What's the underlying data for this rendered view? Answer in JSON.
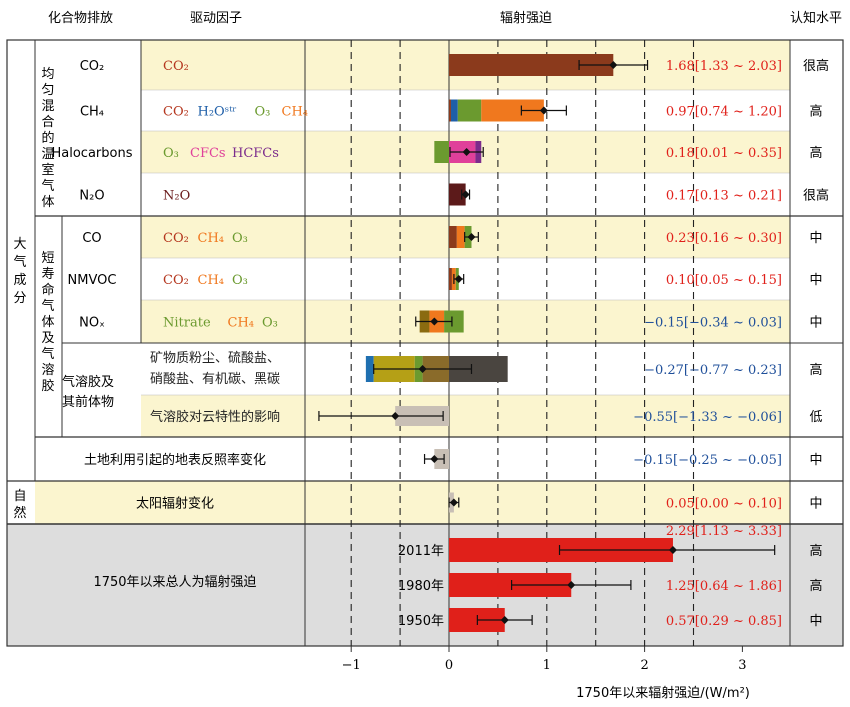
{
  "headers": {
    "emission": "化合物排放",
    "driver": "驱动因子",
    "forcing": "辐射强迫",
    "confidence": "认知水平"
  },
  "groups": {
    "atmos": "大气成分",
    "wmghg": "均匀混合的温室气体",
    "slcf": "短寿命气体及气溶胶",
    "natural": "自然"
  },
  "chart_data": {
    "type": "bar",
    "xlabel": "1750年以来辐射强迫/(W/m²)",
    "xlim": [
      -1.0,
      3.0
    ],
    "xticks": [
      "−1",
      "0",
      "1",
      "2",
      "3"
    ],
    "xtick_values": [
      -1,
      0,
      1,
      2,
      3
    ],
    "grid": "dashed vertical at -1, -0.5, 0.5, 1, 1.5, 2, 2.5",
    "rows": [
      {
        "emission": "CO₂",
        "drivers": [
          {
            "text": "CO₂",
            "color": "#b5371f"
          }
        ],
        "segments": [
          {
            "from": 0,
            "to": 1.68,
            "color": "#8b3a1c"
          }
        ],
        "value": 1.68,
        "ci": [
          1.33,
          2.03
        ],
        "label": "1.68[1.33 ~ 2.03]",
        "label_color": "#e0201a",
        "confidence": "很高"
      },
      {
        "emission": "CH₄",
        "drivers": [
          {
            "text": "CO₂",
            "color": "#b5371f"
          },
          {
            "text": "H₂Oˢᵗʳ",
            "color": "#1f5fa8"
          },
          {
            "text": "O₃",
            "color": "#6b9a2f"
          },
          {
            "text": "CH₄",
            "color": "#f0781e"
          }
        ],
        "segments": [
          {
            "from": 0,
            "to": 0.02,
            "color": "#8b3a1c"
          },
          {
            "from": 0.02,
            "to": 0.09,
            "color": "#1f5fa8"
          },
          {
            "from": 0.09,
            "to": 0.33,
            "color": "#6b9a2f"
          },
          {
            "from": 0.33,
            "to": 0.97,
            "color": "#f0781e"
          }
        ],
        "value": 0.97,
        "ci": [
          0.74,
          1.2
        ],
        "label": "0.97[0.74 ~ 1.20]",
        "label_color": "#e0201a",
        "confidence": "高"
      },
      {
        "emission": "Halocarbons",
        "drivers": [
          {
            "text": "O₃",
            "color": "#6b9a2f"
          },
          {
            "text": "CFCs",
            "color": "#e0409a"
          },
          {
            "text": "HCFCs",
            "color": "#7b2b8c"
          }
        ],
        "segments": [
          {
            "from": -0.15,
            "to": 0,
            "color": "#6b9a2f"
          },
          {
            "from": 0,
            "to": 0.27,
            "color": "#e0409a"
          },
          {
            "from": 0.27,
            "to": 0.33,
            "color": "#7b2b8c"
          }
        ],
        "value": 0.18,
        "ci": [
          0.01,
          0.35
        ],
        "label": "0.18[0.01 ~ 0.35]",
        "label_color": "#e0201a",
        "confidence": "高"
      },
      {
        "emission": "N₂O",
        "drivers": [
          {
            "text": "N₂O",
            "color": "#6b1b1b"
          }
        ],
        "segments": [
          {
            "from": 0,
            "to": 0.17,
            "color": "#5c1a1a"
          }
        ],
        "value": 0.17,
        "ci": [
          0.13,
          0.21
        ],
        "label": "0.17[0.13 ~ 0.21]",
        "label_color": "#e0201a",
        "confidence": "很高"
      },
      {
        "emission": "CO",
        "drivers": [
          {
            "text": "CO₂",
            "color": "#b5371f"
          },
          {
            "text": "CH₄",
            "color": "#f0781e"
          },
          {
            "text": "O₃",
            "color": "#6b9a2f"
          }
        ],
        "segments": [
          {
            "from": 0,
            "to": 0.08,
            "color": "#8b3a1c"
          },
          {
            "from": 0.08,
            "to": 0.16,
            "color": "#f0781e"
          },
          {
            "from": 0.16,
            "to": 0.23,
            "color": "#6b9a2f"
          }
        ],
        "value": 0.23,
        "ci": [
          0.16,
          0.3
        ],
        "label": "0.23[0.16 ~ 0.30]",
        "label_color": "#e0201a",
        "confidence": "中"
      },
      {
        "emission": "NMVOC",
        "drivers": [
          {
            "text": "CO₂",
            "color": "#b5371f"
          },
          {
            "text": "CH₄",
            "color": "#f0781e"
          },
          {
            "text": "O₃",
            "color": "#6b9a2f"
          }
        ],
        "segments": [
          {
            "from": 0,
            "to": 0.03,
            "color": "#8b3a1c"
          },
          {
            "from": 0.03,
            "to": 0.07,
            "color": "#f0781e"
          },
          {
            "from": 0.07,
            "to": 0.1,
            "color": "#6b9a2f"
          }
        ],
        "value": 0.1,
        "ci": [
          0.05,
          0.15
        ],
        "label": "0.10[0.05 ~ 0.15]",
        "label_color": "#e0201a",
        "confidence": "中"
      },
      {
        "emission": "NOₓ",
        "drivers": [
          {
            "text": "Nitrate",
            "color": "#6b9a2f"
          },
          {
            "text": "CH₄",
            "color": "#f0781e"
          },
          {
            "text": "O₃",
            "color": "#6b9a2f"
          }
        ],
        "segments": [
          {
            "from": -0.3,
            "to": -0.2,
            "color": "#8a6b10"
          },
          {
            "from": -0.2,
            "to": -0.05,
            "color": "#f0781e"
          },
          {
            "from": -0.05,
            "to": 0.15,
            "color": "#6b9a2f"
          }
        ],
        "value": -0.15,
        "ci": [
          -0.34,
          0.03
        ],
        "label": "−0.15[−0.34 ~ 0.03]",
        "label_color": "#1f4f9a",
        "confidence": "中"
      },
      {
        "emission": "",
        "drivers": [
          {
            "text": "矿物质粉尘、硫酸盐、",
            "color": "#222222"
          },
          {
            "text": "硝酸盐、有机碳、黑碳",
            "color": "#222222"
          }
        ],
        "segments": [
          {
            "from": -0.85,
            "to": -0.77,
            "color": "#1f6fb0"
          },
          {
            "from": -0.77,
            "to": -0.35,
            "color": "#b5a016"
          },
          {
            "from": -0.35,
            "to": -0.27,
            "color": "#6b9a2f"
          },
          {
            "from": -0.27,
            "to": 0,
            "color": "#8a6b2a"
          },
          {
            "from": 0,
            "to": 0.6,
            "color": "#4a4540"
          }
        ],
        "value": -0.27,
        "ci": [
          -0.77,
          0.23
        ],
        "label": "−0.27[−0.77 ~ 0.23]",
        "label_color": "#1f4f9a",
        "confidence": "高"
      },
      {
        "emission": "",
        "drivers": [
          {
            "text": "气溶胶对云特性的影响",
            "color": "#222222"
          }
        ],
        "segments": [
          {
            "from": -0.55,
            "to": 0,
            "color": "#c8bfb5"
          }
        ],
        "value": -0.55,
        "ci": [
          -1.33,
          -0.06
        ],
        "label": "−0.55[−1.33 ~ −0.06]",
        "label_color": "#1f4f9a",
        "confidence": "低"
      },
      {
        "emission": "土地利用引起的地表反照率变化",
        "drivers": [],
        "segments": [
          {
            "from": -0.15,
            "to": 0,
            "color": "#c8bfb5"
          }
        ],
        "value": -0.15,
        "ci": [
          -0.25,
          -0.05
        ],
        "label": "−0.15[−0.25 ~ −0.05]",
        "label_color": "#1f4f9a",
        "confidence": "中"
      },
      {
        "emission": "太阳辐射变化",
        "drivers": [],
        "segments": [
          {
            "from": 0,
            "to": 0.05,
            "color": "#c8bfb5"
          }
        ],
        "value": 0.05,
        "ci": [
          0,
          0.1
        ],
        "label": "0.05[0.00 ~ 0.10]",
        "label_color": "#e0201a",
        "confidence": "中"
      }
    ],
    "aerosol_group_label": "气溶胶及其前体物",
    "total": {
      "label": "1750年以来总人为辐射强迫",
      "rows": [
        {
          "year": "2011年",
          "value": 2.29,
          "ci": [
            1.13,
            3.33
          ],
          "label": "2.29[1.13 ~ 3.33]",
          "confidence": "高"
        },
        {
          "year": "1980年",
          "value": 1.25,
          "ci": [
            0.64,
            1.86
          ],
          "label": "1.25[0.64 ~ 1.86]",
          "confidence": "高"
        },
        {
          "year": "1950年",
          "value": 0.57,
          "ci": [
            0.29,
            0.85
          ],
          "label": "0.57[0.29 ~ 0.85]",
          "confidence": "中"
        }
      ],
      "bar_color": "#e0201a",
      "label_color": "#e0201a"
    }
  }
}
